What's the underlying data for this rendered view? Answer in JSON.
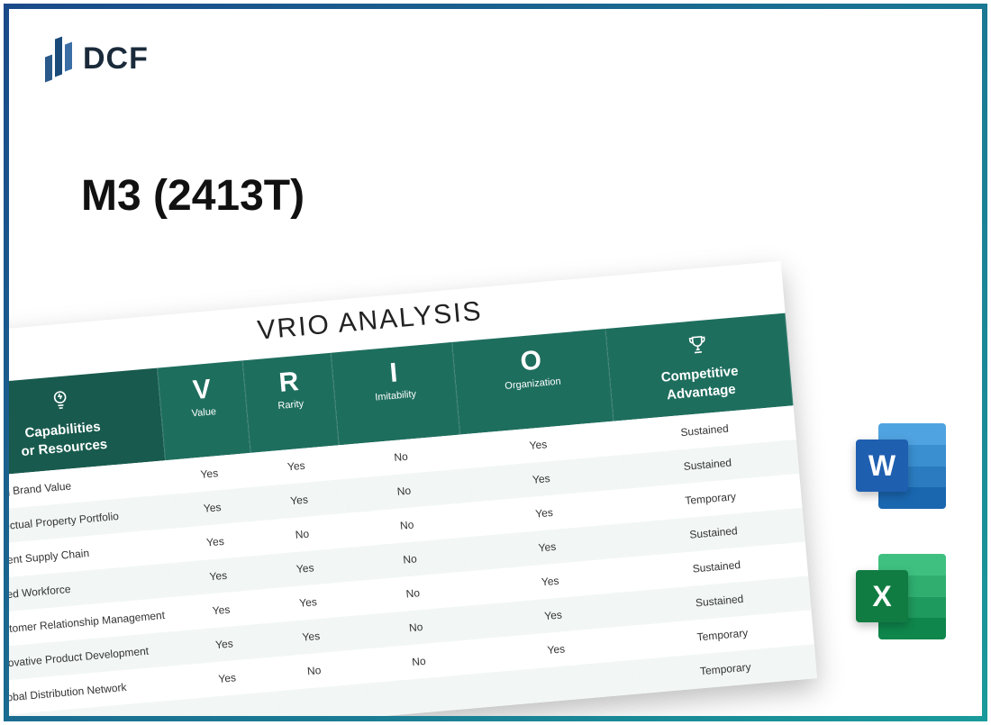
{
  "brand": {
    "name": "DCF"
  },
  "page_title": "M3 (2413T)",
  "vrio": {
    "title": "VRIO ANALYSIS",
    "header": {
      "capabilities": "Capabilities\nor Resources",
      "v_big": "V",
      "v_small": "Value",
      "r_big": "R",
      "r_small": "Rarity",
      "i_big": "I",
      "i_small": "Imitability",
      "o_big": "O",
      "o_small": "Organization",
      "advantage": "Competitive\nAdvantage"
    },
    "rows": [
      {
        "label": "Strong Brand Value",
        "v": "Yes",
        "r": "Yes",
        "i": "No",
        "o": "Yes",
        "adv": "Sustained"
      },
      {
        "label": "Intellectual Property Portfolio",
        "v": "Yes",
        "r": "Yes",
        "i": "No",
        "o": "Yes",
        "adv": "Sustained"
      },
      {
        "label": "Efficient Supply Chain",
        "v": "Yes",
        "r": "No",
        "i": "No",
        "o": "Yes",
        "adv": "Temporary"
      },
      {
        "label": "Skilled Workforce",
        "v": "Yes",
        "r": "Yes",
        "i": "No",
        "o": "Yes",
        "adv": "Sustained"
      },
      {
        "label": "Customer Relationship Management",
        "v": "Yes",
        "r": "Yes",
        "i": "No",
        "o": "Yes",
        "adv": "Sustained"
      },
      {
        "label": "Innovative Product Development",
        "v": "Yes",
        "r": "Yes",
        "i": "No",
        "o": "Yes",
        "adv": "Sustained"
      },
      {
        "label": "Global Distribution Network",
        "v": "Yes",
        "r": "No",
        "i": "No",
        "o": "Yes",
        "adv": "Temporary"
      },
      {
        "label": "",
        "v": "",
        "r": "",
        "i": "",
        "o": "",
        "adv": "Temporary"
      }
    ]
  },
  "file_icons": {
    "word_letter": "W",
    "excel_letter": "X"
  },
  "colors": {
    "frame_gradient_from": "#1a4a8a",
    "frame_gradient_to": "#1a9a9a",
    "table_header_bg": "#1e6e5e",
    "table_header_cap_bg": "#185a4e",
    "row_alt_bg": "#f2f7f5",
    "word_tile": "#1f5fb0",
    "excel_tile": "#107c41"
  }
}
